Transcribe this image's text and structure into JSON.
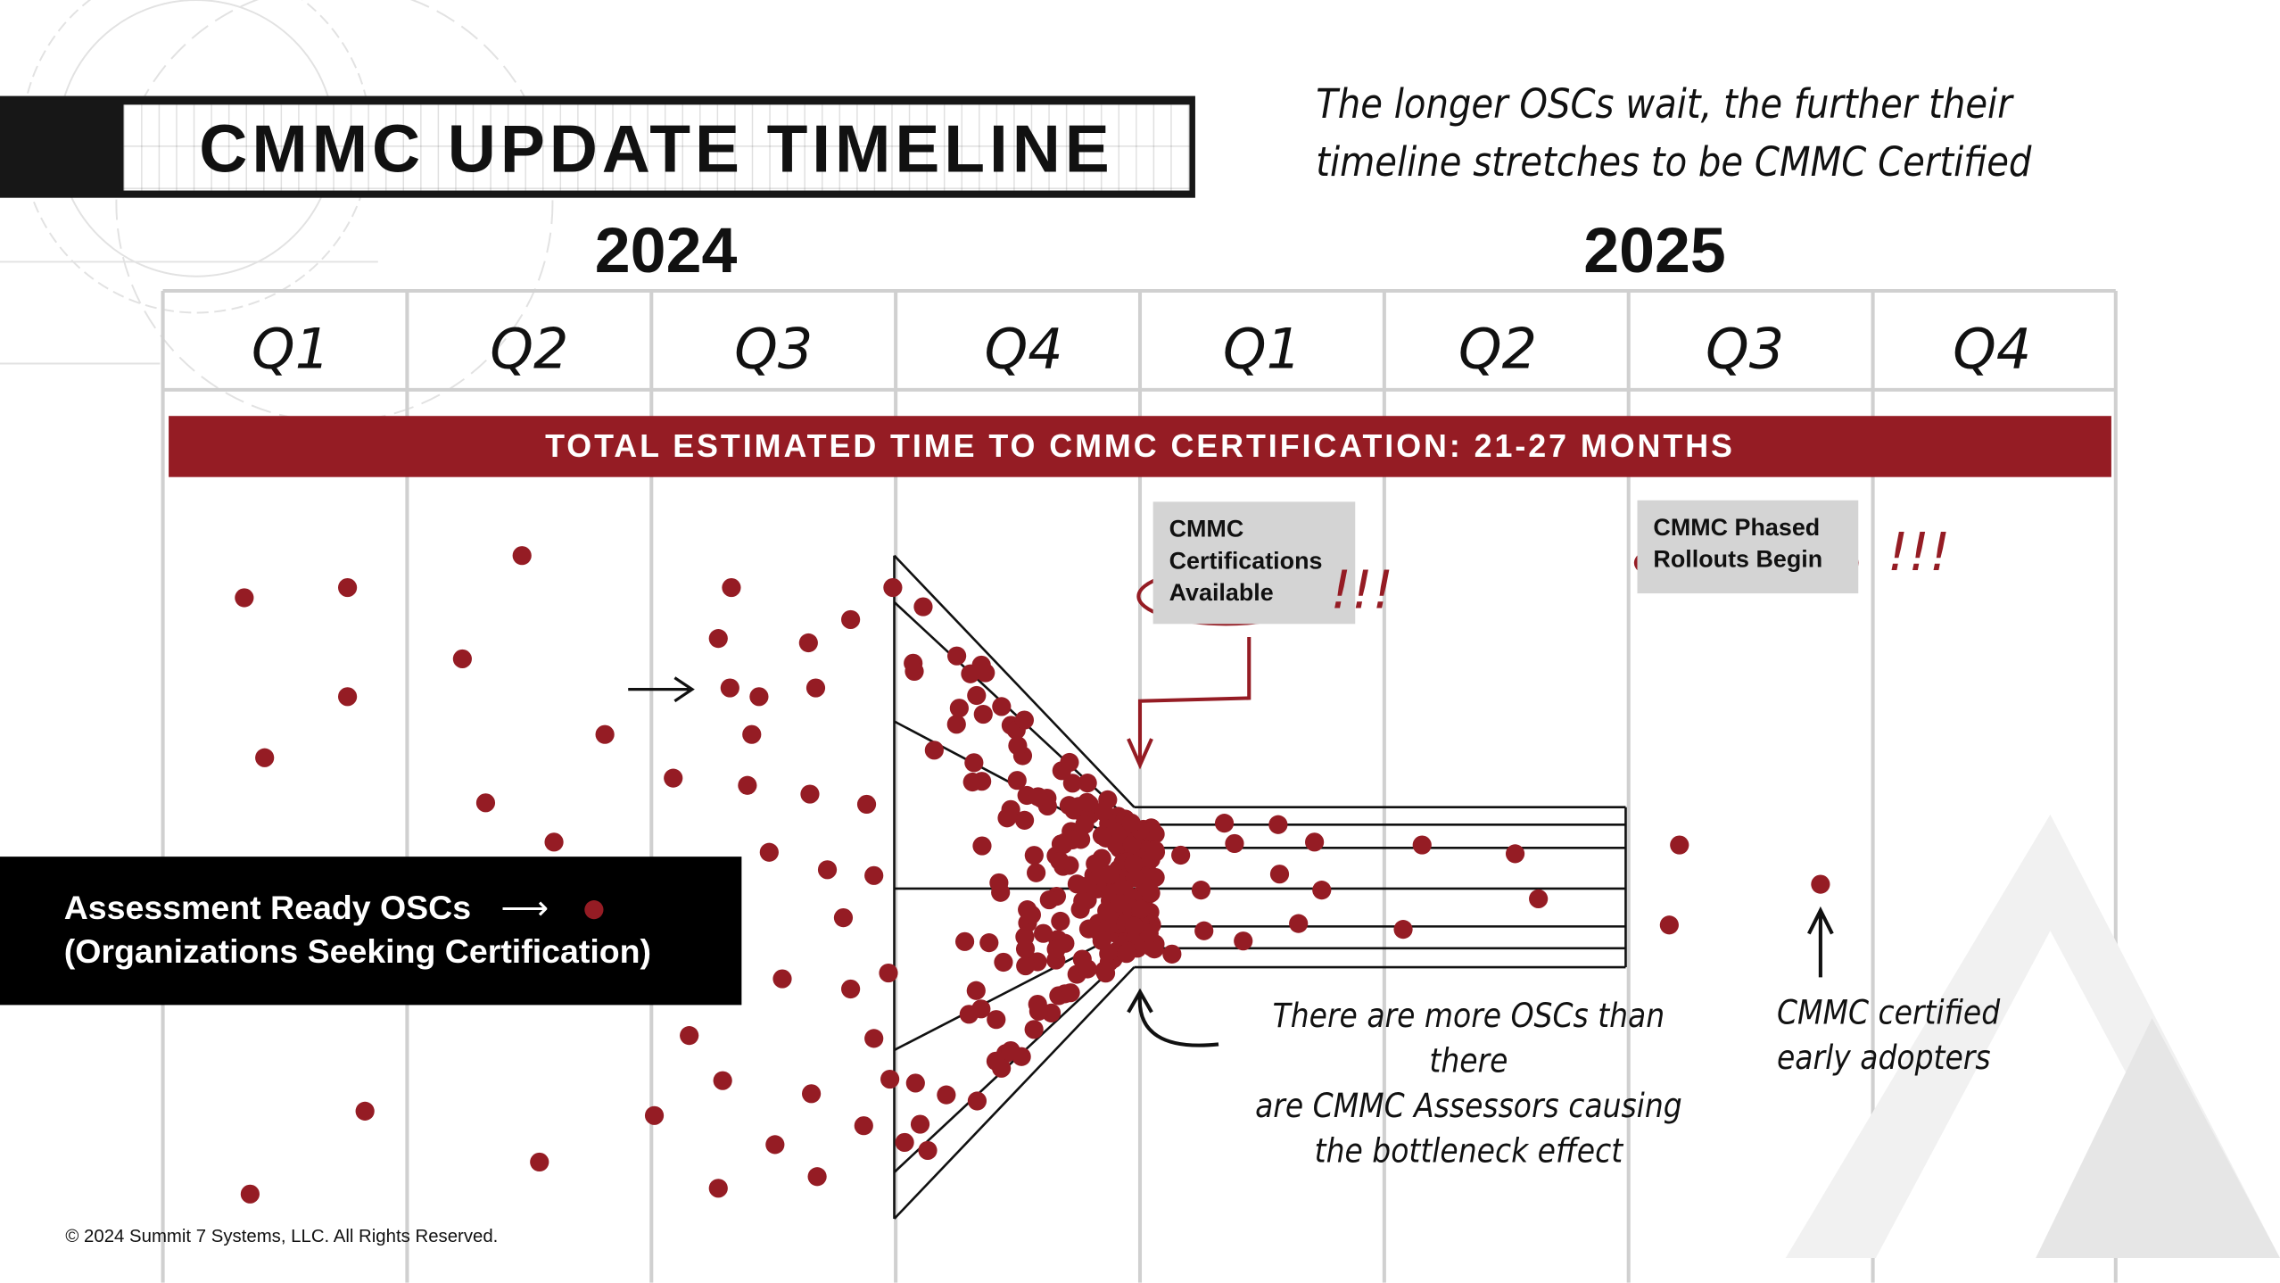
{
  "title": "CMMC UPDATE TIMELINE",
  "subtitle_lines": [
    "The longer OSCs wait, the further their",
    "timeline stretches to be CMMC Certified"
  ],
  "years": [
    "2024",
    "2025"
  ],
  "quarters": [
    "Q1",
    "Q2",
    "Q3",
    "Q4",
    "Q1",
    "Q2",
    "Q3",
    "Q4"
  ],
  "banner": "TOTAL ESTIMATED TIME TO CMMC CERTIFICATION: 21-27 MONTHS",
  "milestones": [
    {
      "lines": [
        "CMMC",
        "Certifications",
        "Available"
      ],
      "emphasis": "!!!"
    },
    {
      "lines": [
        "CMMC Phased",
        "Rollouts Begin"
      ],
      "emphasis": "!!!"
    }
  ],
  "legend": {
    "line1": "Assessment Ready OSCs",
    "line2": "(Organizations Seeking Certification)",
    "dot_color": "#951c24"
  },
  "annotations": {
    "bottleneck": [
      "There are more OSCs than there",
      "are CMMC Assessors causing",
      "the bottleneck effect"
    ],
    "early_adopters": [
      "CMMC certified",
      "early adopters"
    ]
  },
  "copyright": "© 2024 Summit 7 Systems, LLC. All Rights Reserved.",
  "colors": {
    "accent": "#951c24",
    "dark": "#171717",
    "note_bg": "#d4d4d4",
    "grid": "#cfcfcf"
  }
}
